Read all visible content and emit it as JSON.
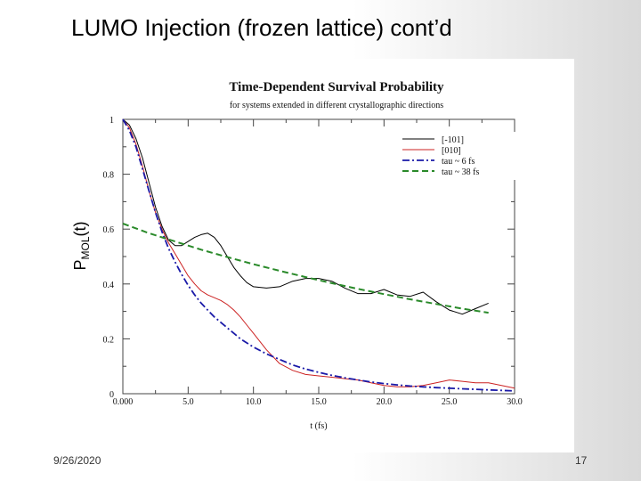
{
  "slide": {
    "title": "LUMO Injection (frozen lattice) cont’d",
    "date": "9/26/2020",
    "page_number": "17"
  },
  "chart_data": {
    "type": "line",
    "title": "Time-Dependent Survival Probability",
    "subtitle": "for systems extended in different crystallographic directions",
    "xlabel": "t (fs)",
    "ylabel": "P",
    "ylabel_sub": "MOL",
    "ylabel_suffix": "(t)",
    "xlim": [
      0,
      30
    ],
    "ylim": [
      0,
      1
    ],
    "xticks": [
      0,
      5,
      10,
      15,
      20,
      25,
      30
    ],
    "xtick_labels": [
      "0.000",
      "5.0",
      "10.0",
      "15.0",
      "20.0",
      "25.0",
      "30.0"
    ],
    "yticks": [
      0,
      0.2,
      0.4,
      0.6,
      0.8,
      1
    ],
    "ytick_labels": [
      "0",
      "0.2",
      "0.4",
      "0.6",
      "0.8",
      "1"
    ],
    "legend_position": "top-right",
    "series": [
      {
        "name": "[-101]",
        "color": "#000000",
        "dash": "solid",
        "x": [
          0,
          0.5,
          1,
          1.5,
          2,
          2.5,
          3,
          3.5,
          4,
          4.5,
          5,
          5.5,
          6,
          6.5,
          7,
          7.5,
          8,
          8.5,
          9,
          9.5,
          10,
          11,
          12,
          13,
          14,
          15,
          16,
          17,
          18,
          19,
          20,
          21,
          22,
          23,
          24,
          25,
          26,
          27,
          28
        ],
        "y": [
          1.0,
          0.98,
          0.93,
          0.86,
          0.77,
          0.68,
          0.61,
          0.56,
          0.54,
          0.54,
          0.555,
          0.57,
          0.58,
          0.585,
          0.57,
          0.54,
          0.5,
          0.46,
          0.43,
          0.405,
          0.39,
          0.385,
          0.39,
          0.41,
          0.42,
          0.42,
          0.41,
          0.385,
          0.365,
          0.365,
          0.38,
          0.36,
          0.355,
          0.37,
          0.335,
          0.305,
          0.29,
          0.31,
          0.33
        ]
      },
      {
        "name": "[010]",
        "color": "#cc2222",
        "dash": "solid",
        "x": [
          0,
          0.5,
          1,
          1.5,
          2,
          2.5,
          3,
          3.5,
          4,
          4.5,
          5,
          5.5,
          6,
          6.5,
          7,
          7.5,
          8,
          8.5,
          9,
          9.5,
          10,
          11,
          12,
          13,
          14,
          15,
          16,
          17,
          18,
          19,
          20,
          21,
          22,
          23,
          24,
          25,
          26,
          27,
          28,
          29,
          30
        ],
        "y": [
          1.0,
          0.97,
          0.91,
          0.83,
          0.74,
          0.66,
          0.6,
          0.55,
          0.51,
          0.47,
          0.43,
          0.4,
          0.375,
          0.36,
          0.35,
          0.34,
          0.325,
          0.305,
          0.28,
          0.25,
          0.22,
          0.16,
          0.11,
          0.085,
          0.07,
          0.065,
          0.06,
          0.055,
          0.05,
          0.04,
          0.03,
          0.025,
          0.025,
          0.03,
          0.04,
          0.05,
          0.045,
          0.04,
          0.04,
          0.03,
          0.02
        ]
      },
      {
        "name": "tau ~ 6 fs",
        "color": "#1a1aa8",
        "dash": "dashdot",
        "x": [
          0,
          0.5,
          1,
          1.5,
          2,
          2.5,
          3,
          3.5,
          4,
          4.5,
          5,
          5.5,
          6,
          6.5,
          7,
          7.5,
          8,
          8.5,
          9,
          9.5,
          10,
          11,
          12,
          13,
          14,
          15,
          16,
          17,
          18,
          19,
          20,
          21,
          22,
          23,
          24,
          25,
          26,
          27,
          28,
          29,
          30
        ],
        "y": [
          1.0,
          0.96,
          0.9,
          0.82,
          0.74,
          0.66,
          0.59,
          0.53,
          0.48,
          0.435,
          0.395,
          0.36,
          0.33,
          0.305,
          0.28,
          0.26,
          0.24,
          0.22,
          0.2,
          0.185,
          0.17,
          0.145,
          0.125,
          0.105,
          0.09,
          0.078,
          0.067,
          0.058,
          0.05,
          0.043,
          0.037,
          0.032,
          0.028,
          0.025,
          0.022,
          0.02,
          0.018,
          0.016,
          0.014,
          0.012,
          0.01
        ]
      },
      {
        "name": "tau ~ 38 fs",
        "color": "#2a8a2a",
        "dash": "dashed",
        "x": [
          0,
          2,
          4,
          6,
          8,
          10,
          12,
          14,
          16,
          18,
          20,
          22,
          24,
          26,
          28
        ],
        "y": [
          0.62,
          0.585,
          0.555,
          0.525,
          0.498,
          0.472,
          0.448,
          0.425,
          0.403,
          0.382,
          0.363,
          0.344,
          0.327,
          0.31,
          0.295
        ]
      }
    ]
  }
}
